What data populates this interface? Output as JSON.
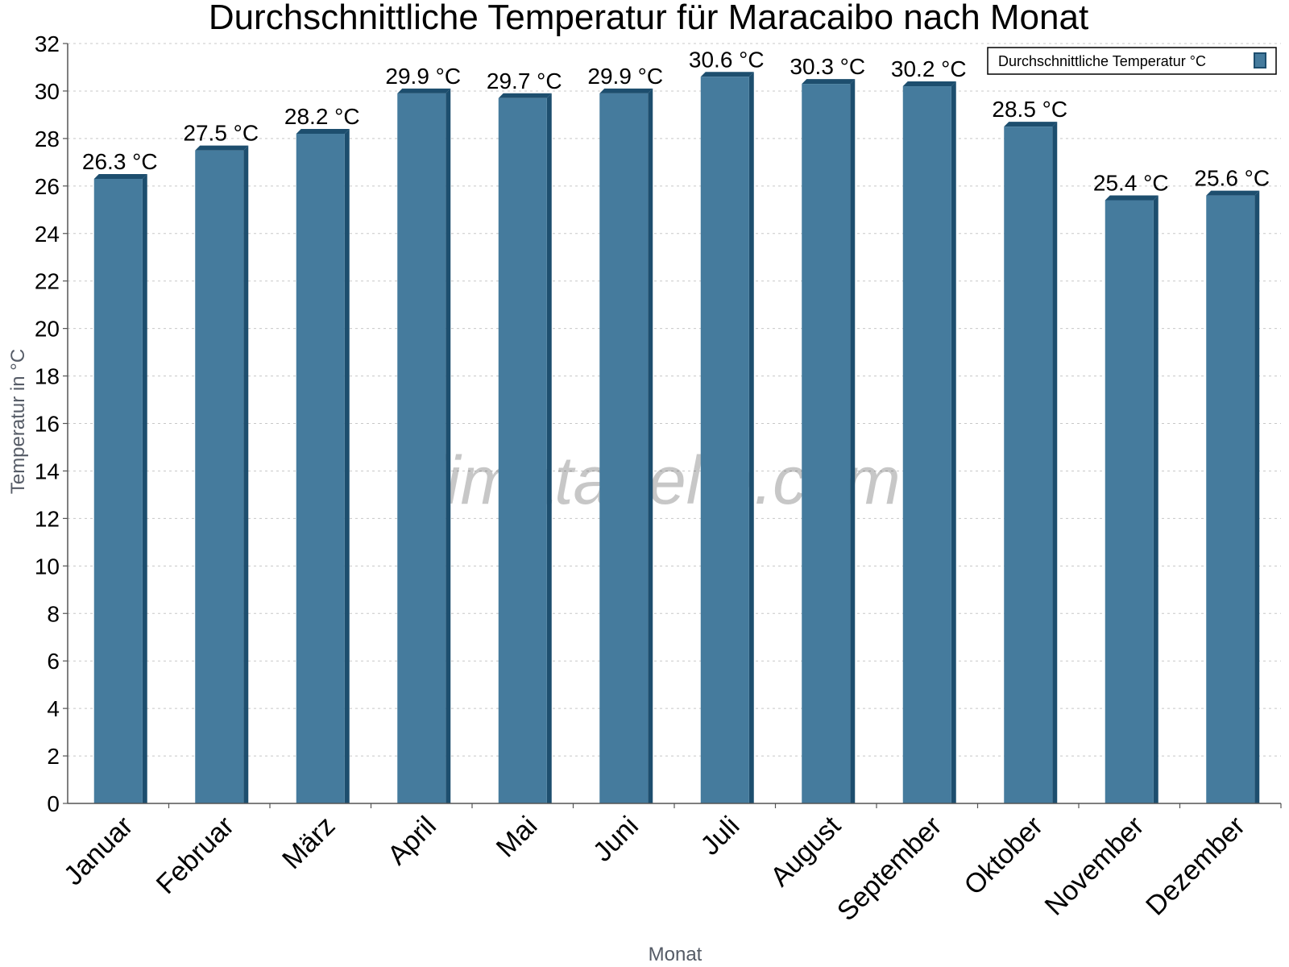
{
  "chart_data": {
    "type": "bar",
    "title": "Durchschnittliche Temperatur für Maracaibo nach Monat",
    "xlabel": "Monat",
    "ylabel": "Temperatur in °C",
    "ylim": [
      0,
      32
    ],
    "yticks": [
      0,
      2,
      4,
      6,
      8,
      10,
      12,
      14,
      16,
      18,
      20,
      22,
      24,
      26,
      28,
      30,
      32
    ],
    "grid": true,
    "legend_position": "top-right",
    "categories": [
      "Januar",
      "Februar",
      "März",
      "April",
      "Mai",
      "Juni",
      "Juli",
      "August",
      "September",
      "Oktober",
      "November",
      "Dezember"
    ],
    "series": [
      {
        "name": "Durchschnittliche Temperatur °C",
        "values": [
          26.3,
          27.5,
          28.2,
          29.9,
          29.7,
          29.9,
          30.6,
          30.3,
          30.2,
          28.5,
          25.4,
          25.6
        ],
        "labels": [
          "26.3 °C",
          "27.5 °C",
          "28.2 °C",
          "29.9 °C",
          "29.7 °C",
          "29.9 °C",
          "30.6 °C",
          "30.3 °C",
          "30.2 °C",
          "28.5 °C",
          "25.4 °C",
          "25.6 °C"
        ],
        "color": "#457b9d",
        "edge_color": "#1d4e6e"
      }
    ],
    "watermark": "klimatabelle.com"
  }
}
